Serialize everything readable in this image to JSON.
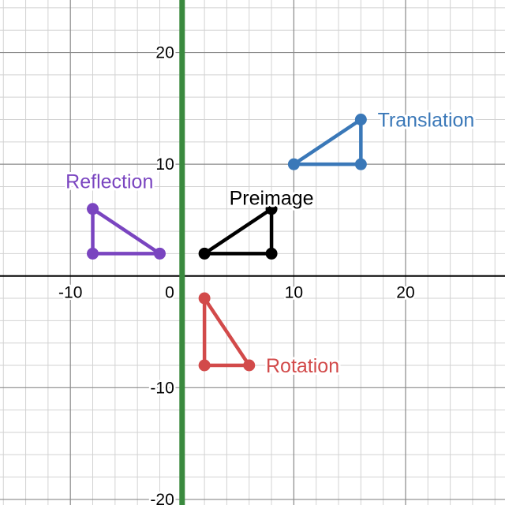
{
  "graph": {
    "x_range": [
      -16.3,
      28.9
    ],
    "y_range": [
      -20.5,
      24.7
    ],
    "minor_step": 2,
    "major_step": 10,
    "x_tick_labels": [
      {
        "value": -10,
        "text": "-10"
      },
      {
        "value": 10,
        "text": "10"
      },
      {
        "value": 20,
        "text": "20"
      }
    ],
    "y_tick_labels": [
      {
        "value": 20,
        "text": "20"
      },
      {
        "value": 10,
        "text": "10"
      },
      {
        "value": -10,
        "text": "-10"
      },
      {
        "value": -20,
        "text": "-20"
      }
    ],
    "origin_label": "0",
    "highlight_line": {
      "type": "vertical",
      "x": 0,
      "color": "#3a8a3e"
    },
    "colors": {
      "grid_minor": "#d2d2d2",
      "grid_major": "#8a8a8a",
      "axis": "#000000"
    }
  },
  "shapes": [
    {
      "id": "preimage",
      "label": "Preimage",
      "label_anchor": [
        8,
        7
      ],
      "color": "#000000",
      "label_color": "#000000",
      "vertices": [
        [
          2,
          2
        ],
        [
          8,
          2
        ],
        [
          8,
          6
        ]
      ]
    },
    {
      "id": "translation",
      "label": "Translation",
      "label_anchor": [
        17.5,
        14
      ],
      "color": "#3a78b8",
      "label_color": "#3a78b8",
      "vertices": [
        [
          10,
          10
        ],
        [
          16,
          10
        ],
        [
          16,
          14
        ]
      ]
    },
    {
      "id": "reflection",
      "label": "Reflection",
      "label_anchor": [
        -6.5,
        8.5
      ],
      "color": "#7a45c0",
      "label_color": "#7a45c0",
      "vertices": [
        [
          -8,
          2
        ],
        [
          -2,
          2
        ],
        [
          -8,
          6
        ]
      ]
    },
    {
      "id": "rotation",
      "label": "Rotation",
      "label_anchor": [
        7.5,
        -8
      ],
      "color": "#d24a4a",
      "label_color": "#d24a4a",
      "vertices": [
        [
          2,
          -2
        ],
        [
          2,
          -8
        ],
        [
          6,
          -8
        ]
      ]
    }
  ]
}
